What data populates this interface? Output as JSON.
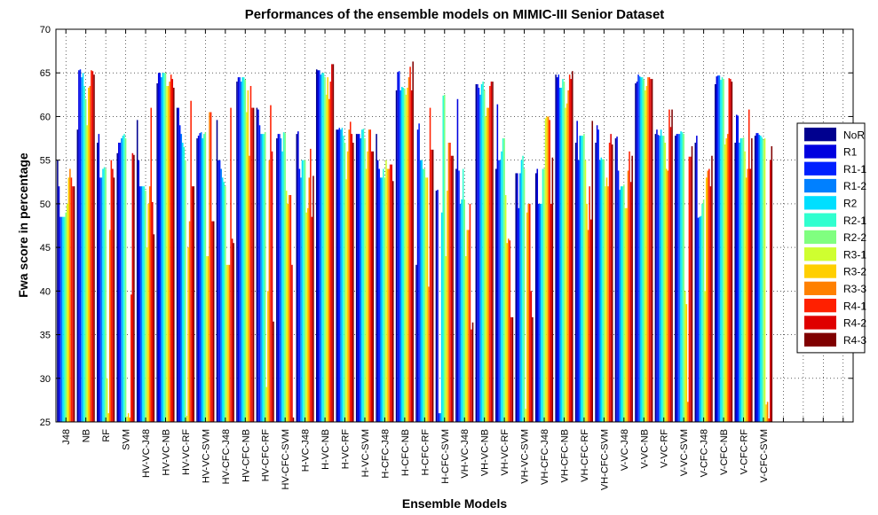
{
  "chart_data": {
    "type": "bar",
    "title": "Performances of the ensemble models on MIMIC-III Senior Dataset",
    "xlabel": "Ensemble Models",
    "ylabel": "Fwa score in percentage",
    "ylim": [
      25,
      70
    ],
    "yticks": [
      25,
      30,
      35,
      40,
      45,
      50,
      55,
      60,
      65,
      70
    ],
    "grid": true,
    "legend_position": "right",
    "categories": [
      "J48",
      "NB",
      "RF",
      "SVM",
      "HV-VC-J48",
      "HV-VC-NB",
      "HV-VC-RF",
      "HV-VC-SVM",
      "HV-CFC-J48",
      "HV-CFC-NB",
      "HV-CFC-RF",
      "HV-CFC-SVM",
      "H-VC-J48",
      "H-VC-NB",
      "H-VC-RF",
      "H-VC-SVM",
      "H-CFC-J48",
      "H-CFC-NB",
      "H-CFC-RF",
      "H-CFC-SVM",
      "VH-VC-J48",
      "VH-VC-NB",
      "VH-VC-RF",
      "VH-VC-SVM",
      "VH-CFC-J48",
      "VH-CFC-NB",
      "VH-CFC-RF",
      "VH-CFC-SVM",
      "V-VC-J48",
      "V-VC-NB",
      "V-VC-RF",
      "V-VC-SVM",
      "V-CFC-J48",
      "V-CFC-NB",
      "V-CFC-RF",
      "V-CFC-SVM"
    ],
    "series": [
      {
        "name": "NoR",
        "color": "#00008f",
        "values": [
          55,
          58.5,
          57,
          55.8,
          59.6,
          63.8,
          61,
          57.5,
          59.6,
          64,
          61,
          57.5,
          58,
          65.4,
          58.5,
          58,
          58,
          63,
          43,
          51.5,
          54,
          63.7,
          54,
          53.5,
          53.5,
          64.8,
          57,
          57,
          57.5,
          63.8,
          58,
          57.8,
          57,
          63.7,
          57,
          57.8
        ]
      },
      {
        "name": "R1",
        "color": "#0000df",
        "values": [
          52,
          65.3,
          58,
          57,
          55,
          65,
          61,
          57.8,
          55,
          64.5,
          60.8,
          58,
          58.3,
          65.3,
          58.5,
          58,
          55,
          65.1,
          58.5,
          51.6,
          62,
          63.7,
          61.4,
          53.5,
          54,
          64.5,
          59.5,
          59,
          57.7,
          64,
          58.5,
          58,
          57.8,
          64.6,
          60.2,
          58.1
        ]
      },
      {
        "name": "R1-1",
        "color": "#0020ff",
        "values": [
          48.5,
          65.4,
          53,
          57,
          52,
          65,
          59,
          58.1,
          55,
          64.5,
          59,
          58,
          54,
          65.3,
          58.7,
          58,
          54,
          65.2,
          59.2,
          26,
          53.8,
          63.3,
          55,
          49.5,
          50,
          64.8,
          55,
          58.5,
          53.8,
          64.8,
          57.9,
          58,
          48.4,
          64.7,
          60.1,
          58.1
        ]
      },
      {
        "name": "R1-2",
        "color": "#0080ff",
        "values": [
          48.5,
          64.5,
          53,
          57.5,
          52,
          64.5,
          58,
          58.2,
          54,
          64,
          58,
          57.5,
          53,
          64.8,
          58.5,
          57.5,
          53,
          63,
          55,
          26,
          50,
          62.5,
          55,
          53.5,
          50,
          63.3,
          57.8,
          55,
          51.6,
          64.6,
          57.8,
          58,
          48.5,
          64.7,
          57,
          57.9
        ]
      },
      {
        "name": "R2",
        "color": "#00dfff",
        "values": [
          48.5,
          65,
          54,
          57.8,
          52,
          65,
          57,
          57.5,
          53,
          64.5,
          58,
          56,
          55,
          65,
          58.7,
          58.5,
          53,
          63.4,
          55,
          49,
          50.5,
          63.7,
          56,
          55,
          50,
          63.3,
          57.8,
          55.3,
          52,
          64.5,
          58.5,
          58.3,
          48.6,
          64.2,
          57.5,
          57.8
        ]
      },
      {
        "name": "R2-1",
        "color": "#30ffcf",
        "values": [
          48.5,
          63.5,
          54.2,
          58,
          52,
          65,
          56.5,
          58,
          52.5,
          64.5,
          58,
          58.2,
          55,
          65,
          57.8,
          58.6,
          54,
          63.3,
          54,
          62.4,
          54,
          64,
          57.5,
          55.5,
          54,
          64.3,
          57.8,
          55.1,
          52,
          64.5,
          57.8,
          58.2,
          50,
          64.5,
          57.5,
          57.6
        ]
      },
      {
        "name": "R2-2",
        "color": "#80ff80",
        "values": [
          49,
          62,
          54,
          57.5,
          51.5,
          65,
          55,
          58.2,
          52,
          64.2,
          58.2,
          58.1,
          55,
          64.5,
          57,
          57.5,
          53,
          63.2,
          54,
          62.5,
          50.5,
          63,
          57.5,
          54,
          54,
          64,
          58,
          55.1,
          52.2,
          64.2,
          57.8,
          58,
          50.5,
          64.3,
          57.6,
          57.3
        ]
      },
      {
        "name": "R3-1",
        "color": "#cfff30",
        "values": [
          50,
          59,
          30,
          25.6,
          45,
          63.5,
          25.7,
          44,
          43,
          60.5,
          29,
          51.5,
          49,
          62.5,
          52.8,
          54,
          55,
          62.5,
          53,
          44,
          44,
          60,
          51,
          26.5,
          59.8,
          61,
          55,
          52,
          49.5,
          63,
          57,
          40,
          40,
          56.8,
          56,
          57.5
        ]
      },
      {
        "name": "R3-2",
        "color": "#ffcf00",
        "values": [
          53,
          63.3,
          26,
          26,
          50,
          63.5,
          45,
          44,
          43,
          63,
          40,
          50,
          49.5,
          64.5,
          56,
          56,
          54,
          63.3,
          53,
          51.5,
          47,
          61,
          45.5,
          49,
          60,
          61.5,
          50,
          53,
          49.5,
          63.5,
          54,
          38.5,
          53,
          57.5,
          53,
          27
        ]
      },
      {
        "name": "R3-3",
        "color": "#ff8000",
        "values": [
          54,
          63.5,
          47,
          25.5,
          52,
          64,
          48,
          60.5,
          43,
          55.5,
          55,
          51,
          53,
          62,
          58.5,
          58.5,
          54,
          64.5,
          40.5,
          57,
          47,
          61,
          46,
          50,
          60,
          63,
          47,
          52,
          53.8,
          64.5,
          53.8,
          27.3,
          53.8,
          58,
          54,
          27.3
        ]
      },
      {
        "name": "R4-1",
        "color": "#ff2000",
        "values": [
          53,
          65.3,
          55,
          39.6,
          61,
          64.8,
          61.8,
          60.5,
          61,
          63.5,
          61.3,
          51,
          56.3,
          64,
          59.4,
          58.5,
          54.5,
          65.7,
          61,
          57,
          50,
          63.5,
          45.8,
          50,
          59.6,
          64.8,
          52,
          57,
          56,
          64.5,
          60.8,
          55.4,
          54,
          64.4,
          60.8,
          25.4
        ]
      },
      {
        "name": "R4-2",
        "color": "#df0000",
        "values": [
          52,
          65.2,
          54,
          55.8,
          50.2,
          64.3,
          52,
          48,
          46,
          61,
          56,
          43,
          48.5,
          66,
          58,
          56,
          54.5,
          63,
          56.2,
          55.5,
          35.6,
          64,
          37,
          40,
          50,
          64.3,
          48.2,
          58,
          52.5,
          64.3,
          58.8,
          55.4,
          52,
          64.3,
          54,
          55
        ]
      },
      {
        "name": "R4-3",
        "color": "#800000",
        "values": [
          52,
          64.8,
          53,
          55.6,
          46.5,
          63.3,
          52,
          48,
          45.5,
          61,
          36.5,
          25.5,
          53.2,
          66,
          57,
          56,
          52.6,
          66.3,
          56.2,
          55.5,
          36.4,
          64,
          37,
          37,
          55.3,
          65.2,
          59.5,
          56.8,
          55.5,
          64.3,
          60.8,
          56.6,
          55.5,
          64,
          57.5,
          56.6
        ]
      }
    ]
  }
}
